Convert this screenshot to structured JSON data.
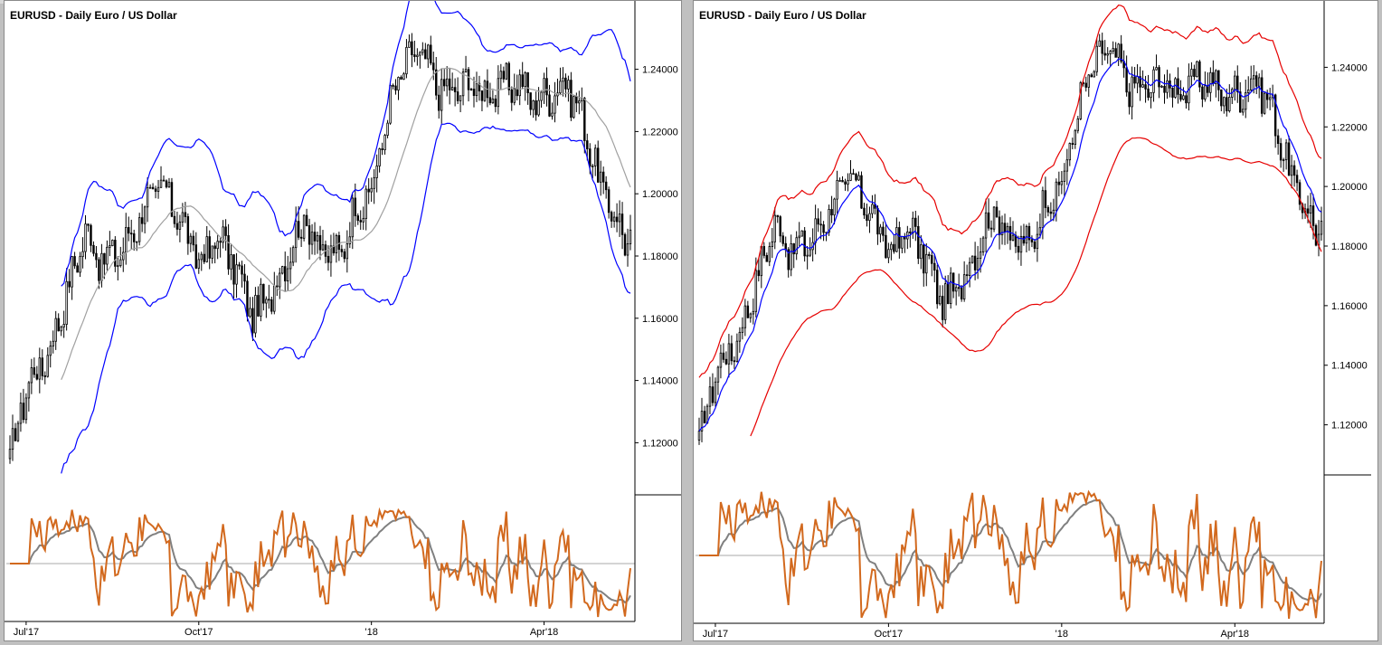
{
  "colors": {
    "candle": "#000000",
    "left_bands": "#0000ff",
    "left_mid": "#a0a0a0",
    "right_bands": "#e60000",
    "right_mid": "#0000ff",
    "osc_fast": "#d2691e",
    "osc_slow": "#808080",
    "background": "#ffffff"
  },
  "chart_data": [
    {
      "type": "candlestick",
      "title": "EURUSD - Daily  Euro / US Dollar",
      "overlay": "bands",
      "y_ticks": [
        "1.24000",
        "1.22000",
        "1.20000",
        "1.18000",
        "1.16000",
        "1.14000",
        "1.12000"
      ],
      "ylim": [
        1.105,
        1.255
      ],
      "x_ticks": [
        "Jul'17",
        "Oct'17",
        "'18",
        "Apr'18"
      ],
      "x_tick_index": [
        6,
        70,
        134,
        198
      ],
      "price_anchors": [
        [
          0,
          1.114
        ],
        [
          6,
          1.138
        ],
        [
          14,
          1.148
        ],
        [
          20,
          1.165
        ],
        [
          28,
          1.188
        ],
        [
          34,
          1.178
        ],
        [
          42,
          1.182
        ],
        [
          50,
          1.196
        ],
        [
          56,
          1.202
        ],
        [
          62,
          1.194
        ],
        [
          70,
          1.178
        ],
        [
          78,
          1.186
        ],
        [
          84,
          1.175
        ],
        [
          90,
          1.161
        ],
        [
          96,
          1.166
        ],
        [
          104,
          1.183
        ],
        [
          110,
          1.192
        ],
        [
          116,
          1.181
        ],
        [
          122,
          1.18
        ],
        [
          128,
          1.195
        ],
        [
          134,
          1.2
        ],
        [
          140,
          1.226
        ],
        [
          146,
          1.241
        ],
        [
          152,
          1.246
        ],
        [
          158,
          1.235
        ],
        [
          164,
          1.232
        ],
        [
          170,
          1.236
        ],
        [
          176,
          1.232
        ],
        [
          182,
          1.234
        ],
        [
          188,
          1.236
        ],
        [
          194,
          1.23
        ],
        [
          200,
          1.232
        ],
        [
          206,
          1.236
        ],
        [
          212,
          1.225
        ],
        [
          218,
          1.205
        ],
        [
          224,
          1.193
        ],
        [
          228,
          1.186
        ]
      ],
      "oscillator": {
        "reference_level": 0.5,
        "fast_period": 9,
        "slow_period": 6
      }
    },
    {
      "type": "candlestick",
      "title": "EURUSD - Daily  Euro / US Dollar",
      "overlay": "envelope",
      "y_ticks": [
        "1.24000",
        "1.22000",
        "1.20000",
        "1.18000",
        "1.16000",
        "1.14000",
        "1.12000"
      ],
      "ylim": [
        1.105,
        1.255
      ],
      "x_ticks": [
        "Jul'17",
        "Oct'17",
        "'18",
        "Apr'18"
      ],
      "x_tick_index": [
        6,
        70,
        134,
        198
      ],
      "oscillator": {
        "reference_level": 0.5,
        "fast_period": 9,
        "slow_period": 6
      }
    }
  ]
}
